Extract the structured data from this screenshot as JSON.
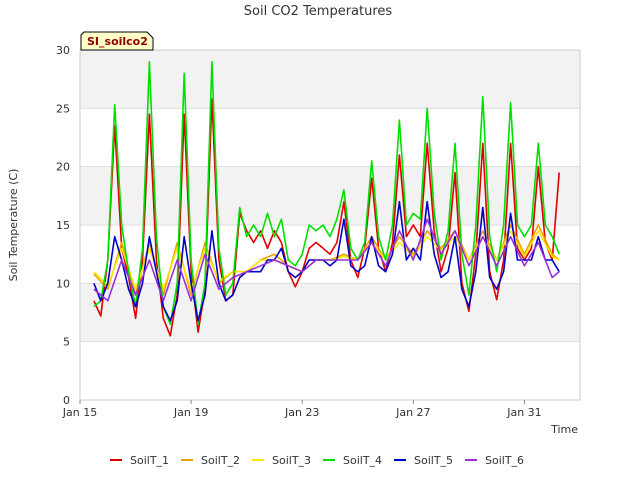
{
  "chart_data": {
    "type": "line",
    "title": "Soil CO2 Temperatures",
    "xlabel": "Time",
    "ylabel": "Soil Temperature (C)",
    "site_label": "SI_soilco2",
    "xlim": [
      "2023-01-15",
      "2023-02-02"
    ],
    "ylim": [
      0,
      30
    ],
    "yticks": [
      0,
      5,
      10,
      15,
      20,
      25,
      30
    ],
    "xticks": [
      {
        "date": "2023-01-15",
        "label": "Jan 15"
      },
      {
        "date": "2023-01-19",
        "label": "Jan 19"
      },
      {
        "date": "2023-01-23",
        "label": "Jan 23"
      },
      {
        "date": "2023-01-27",
        "label": "Jan 27"
      },
      {
        "date": "2023-01-31",
        "label": "Jan 31"
      }
    ],
    "grid": true,
    "legend_position": "bottom",
    "series": [
      {
        "name": "SoilT_1",
        "color": "#e00000",
        "x": [
          "2023-01-15T12:00",
          "2023-01-15T18:00",
          "2023-01-16T00:00",
          "2023-01-16T06:00",
          "2023-01-16T12:00",
          "2023-01-16T18:00",
          "2023-01-17T00:00",
          "2023-01-17T06:00",
          "2023-01-17T12:00",
          "2023-01-17T18:00",
          "2023-01-18T00:00",
          "2023-01-18T06:00",
          "2023-01-18T12:00",
          "2023-01-18T18:00",
          "2023-01-19T00:00",
          "2023-01-19T06:00",
          "2023-01-19T12:00",
          "2023-01-19T18:00",
          "2023-01-20T00:00",
          "2023-01-20T06:00",
          "2023-01-20T12:00",
          "2023-01-20T18:00",
          "2023-01-21T00:00",
          "2023-01-21T06:00",
          "2023-01-21T12:00",
          "2023-01-21T18:00",
          "2023-01-22T00:00",
          "2023-01-22T06:00",
          "2023-01-22T12:00",
          "2023-01-22T18:00",
          "2023-01-23T00:00",
          "2023-01-23T06:00",
          "2023-01-23T12:00",
          "2023-01-23T18:00",
          "2023-01-24T00:00",
          "2023-01-24T06:00",
          "2023-01-24T12:00",
          "2023-01-24T18:00",
          "2023-01-25T00:00",
          "2023-01-25T06:00",
          "2023-01-25T12:00",
          "2023-01-25T18:00",
          "2023-01-26T00:00",
          "2023-01-26T06:00",
          "2023-01-26T12:00",
          "2023-01-26T18:00",
          "2023-01-27T00:00",
          "2023-01-27T06:00",
          "2023-01-27T12:00",
          "2023-01-27T18:00",
          "2023-01-28T00:00",
          "2023-01-28T06:00",
          "2023-01-28T12:00",
          "2023-01-28T18:00",
          "2023-01-29T00:00",
          "2023-01-29T06:00",
          "2023-01-29T12:00",
          "2023-01-29T18:00",
          "2023-01-30T00:00",
          "2023-01-30T06:00",
          "2023-01-30T12:00",
          "2023-01-30T18:00",
          "2023-01-31T00:00",
          "2023-01-31T06:00",
          "2023-01-31T12:00",
          "2023-01-31T18:00",
          "2023-02-01T00:00",
          "2023-02-01T06:00"
        ],
        "y": [
          8.5,
          7.2,
          12,
          23.5,
          13,
          10.5,
          7,
          12,
          24.5,
          12,
          7,
          5.5,
          9,
          24.5,
          11,
          5.8,
          9.5,
          25.8,
          12,
          8.5,
          9,
          16,
          14.5,
          13.5,
          14.5,
          13,
          14.5,
          13.5,
          11,
          9.7,
          11,
          13,
          13.5,
          13,
          12.5,
          13.5,
          17,
          12,
          10.5,
          13,
          19,
          13,
          11,
          13.5,
          21,
          14,
          15,
          14,
          22,
          14.5,
          11,
          13,
          19.5,
          10,
          7.6,
          12.5,
          22,
          11,
          8.6,
          12,
          22,
          13,
          12,
          13,
          20,
          13.5,
          12,
          19.5
        ]
      },
      {
        "name": "SoilT_2",
        "color": "#f0a000",
        "x": [
          "2023-01-15T12:00",
          "2023-01-16T00:00",
          "2023-01-16T12:00",
          "2023-01-17T00:00",
          "2023-01-17T12:00",
          "2023-01-18T00:00",
          "2023-01-18T12:00",
          "2023-01-19T00:00",
          "2023-01-19T12:00",
          "2023-01-20T00:00",
          "2023-01-20T12:00",
          "2023-01-21T00:00",
          "2023-01-21T12:00",
          "2023-01-22T00:00",
          "2023-01-22T12:00",
          "2023-01-23T00:00",
          "2023-01-23T12:00",
          "2023-01-24T00:00",
          "2023-01-24T12:00",
          "2023-01-25T00:00",
          "2023-01-25T12:00",
          "2023-01-26T00:00",
          "2023-01-26T12:00",
          "2023-01-27T00:00",
          "2023-01-27T12:00",
          "2023-01-28T00:00",
          "2023-01-28T12:00",
          "2023-01-29T00:00",
          "2023-01-29T12:00",
          "2023-01-30T00:00",
          "2023-01-30T12:00",
          "2023-01-31T00:00",
          "2023-01-31T12:00",
          "2023-02-01T00:00",
          "2023-02-01T06:00"
        ],
        "y": [
          10.8,
          9.5,
          13.5,
          9,
          13.5,
          9,
          13.5,
          9,
          13.5,
          10,
          11,
          11,
          12,
          12.5,
          11.5,
          11,
          12,
          12,
          12.5,
          12,
          14,
          12,
          14,
          12.5,
          14.5,
          13,
          14.5,
          12,
          14.5,
          12,
          15,
          12.5,
          15,
          12.5,
          12
        ]
      },
      {
        "name": "SoilT_3",
        "color": "#f8e800",
        "x": [
          "2023-01-15T12:00",
          "2023-01-16T00:00",
          "2023-01-16T12:00",
          "2023-01-17T00:00",
          "2023-01-17T12:00",
          "2023-01-18T00:00",
          "2023-01-18T12:00",
          "2023-01-19T00:00",
          "2023-01-19T12:00",
          "2023-01-20T00:00",
          "2023-01-20T12:00",
          "2023-01-21T00:00",
          "2023-01-21T12:00",
          "2023-01-22T00:00",
          "2023-01-22T12:00",
          "2023-01-23T00:00",
          "2023-01-23T12:00",
          "2023-01-24T00:00",
          "2023-01-24T12:00",
          "2023-01-25T00:00",
          "2023-01-25T12:00",
          "2023-01-26T00:00",
          "2023-01-26T12:00",
          "2023-01-27T00:00",
          "2023-01-27T12:00",
          "2023-01-28T00:00",
          "2023-01-28T12:00",
          "2023-01-29T00:00",
          "2023-01-29T12:00",
          "2023-01-30T00:00",
          "2023-01-30T12:00",
          "2023-01-31T00:00",
          "2023-01-31T12:00",
          "2023-02-01T00:00",
          "2023-02-01T06:00"
        ],
        "y": [
          11,
          9.8,
          13,
          9.5,
          13,
          9.5,
          13,
          9.5,
          13,
          10.2,
          11,
          11,
          12,
          12,
          11.5,
          11,
          12,
          12,
          12.3,
          12,
          13.5,
          12,
          13.5,
          12.3,
          14,
          12.8,
          14,
          12,
          14,
          12,
          14.5,
          12.3,
          14.5,
          12.3,
          12
        ]
      },
      {
        "name": "SoilT_4",
        "color": "#00e000",
        "x": [
          "2023-01-15T12:00",
          "2023-01-15T18:00",
          "2023-01-16T00:00",
          "2023-01-16T06:00",
          "2023-01-16T12:00",
          "2023-01-16T18:00",
          "2023-01-17T00:00",
          "2023-01-17T06:00",
          "2023-01-17T12:00",
          "2023-01-17T18:00",
          "2023-01-18T00:00",
          "2023-01-18T06:00",
          "2023-01-18T12:00",
          "2023-01-18T18:00",
          "2023-01-19T00:00",
          "2023-01-19T06:00",
          "2023-01-19T12:00",
          "2023-01-19T18:00",
          "2023-01-20T00:00",
          "2023-01-20T06:00",
          "2023-01-20T12:00",
          "2023-01-20T18:00",
          "2023-01-21T00:00",
          "2023-01-21T06:00",
          "2023-01-21T12:00",
          "2023-01-21T18:00",
          "2023-01-22T00:00",
          "2023-01-22T06:00",
          "2023-01-22T12:00",
          "2023-01-22T18:00",
          "2023-01-23T00:00",
          "2023-01-23T06:00",
          "2023-01-23T12:00",
          "2023-01-23T18:00",
          "2023-01-24T00:00",
          "2023-01-24T06:00",
          "2023-01-24T12:00",
          "2023-01-24T18:00",
          "2023-01-25T00:00",
          "2023-01-25T06:00",
          "2023-01-25T12:00",
          "2023-01-25T18:00",
          "2023-01-26T00:00",
          "2023-01-26T06:00",
          "2023-01-26T12:00",
          "2023-01-26T18:00",
          "2023-01-27T00:00",
          "2023-01-27T06:00",
          "2023-01-27T12:00",
          "2023-01-27T18:00",
          "2023-01-28T00:00",
          "2023-01-28T06:00",
          "2023-01-28T12:00",
          "2023-01-28T18:00",
          "2023-01-29T00:00",
          "2023-01-29T06:00",
          "2023-01-29T12:00",
          "2023-01-29T18:00",
          "2023-01-30T00:00",
          "2023-01-30T06:00",
          "2023-01-30T12:00",
          "2023-01-30T18:00",
          "2023-01-31T00:00",
          "2023-01-31T06:00",
          "2023-01-31T12:00",
          "2023-01-31T18:00",
          "2023-02-01T00:00",
          "2023-02-01T06:00"
        ],
        "y": [
          8,
          8.5,
          12,
          25.3,
          15,
          11,
          8,
          13,
          29,
          14,
          8,
          6.5,
          10,
          28,
          12,
          6.5,
          10,
          29,
          13,
          9,
          10,
          16.5,
          14,
          15,
          14,
          16,
          14,
          15.5,
          12,
          11.5,
          12.5,
          15,
          14.5,
          15,
          14,
          15.5,
          18,
          13,
          12,
          13.5,
          20.5,
          14,
          12,
          15,
          24,
          15,
          16,
          15.5,
          25,
          16,
          12,
          14.5,
          22,
          12.5,
          9,
          15,
          26,
          14,
          11,
          15,
          25.5,
          15,
          14,
          15,
          22,
          15,
          14,
          12.5
        ]
      },
      {
        "name": "SoilT_5",
        "color": "#0000c8",
        "x": [
          "2023-01-15T12:00",
          "2023-01-15T18:00",
          "2023-01-16T00:00",
          "2023-01-16T06:00",
          "2023-01-16T12:00",
          "2023-01-16T18:00",
          "2023-01-17T00:00",
          "2023-01-17T06:00",
          "2023-01-17T12:00",
          "2023-01-17T18:00",
          "2023-01-18T00:00",
          "2023-01-18T06:00",
          "2023-01-18T12:00",
          "2023-01-18T18:00",
          "2023-01-19T00:00",
          "2023-01-19T06:00",
          "2023-01-19T12:00",
          "2023-01-19T18:00",
          "2023-01-20T00:00",
          "2023-01-20T06:00",
          "2023-01-20T12:00",
          "2023-01-20T18:00",
          "2023-01-21T00:00",
          "2023-01-21T06:00",
          "2023-01-21T12:00",
          "2023-01-21T18:00",
          "2023-01-22T00:00",
          "2023-01-22T06:00",
          "2023-01-22T12:00",
          "2023-01-22T18:00",
          "2023-01-23T00:00",
          "2023-01-23T06:00",
          "2023-01-23T12:00",
          "2023-01-23T18:00",
          "2023-01-24T00:00",
          "2023-01-24T06:00",
          "2023-01-24T12:00",
          "2023-01-24T18:00",
          "2023-01-25T00:00",
          "2023-01-25T06:00",
          "2023-01-25T12:00",
          "2023-01-25T18:00",
          "2023-01-26T00:00",
          "2023-01-26T06:00",
          "2023-01-26T12:00",
          "2023-01-26T18:00",
          "2023-01-27T00:00",
          "2023-01-27T06:00",
          "2023-01-27T12:00",
          "2023-01-27T18:00",
          "2023-01-28T00:00",
          "2023-01-28T06:00",
          "2023-01-28T12:00",
          "2023-01-28T18:00",
          "2023-01-29T00:00",
          "2023-01-29T06:00",
          "2023-01-29T12:00",
          "2023-01-29T18:00",
          "2023-01-30T00:00",
          "2023-01-30T06:00",
          "2023-01-30T12:00",
          "2023-01-30T18:00",
          "2023-01-31T00:00",
          "2023-01-31T06:00",
          "2023-01-31T12:00",
          "2023-01-31T18:00",
          "2023-02-01T00:00",
          "2023-02-01T06:00"
        ],
        "y": [
          10,
          8.5,
          10,
          14,
          12,
          9.5,
          8,
          10,
          14,
          11,
          8,
          6.8,
          8.5,
          14,
          10,
          6.8,
          9,
          14.5,
          10,
          8.5,
          9,
          10.5,
          11,
          11,
          11,
          12,
          12,
          13,
          11,
          10.5,
          11,
          12,
          12,
          12,
          11.5,
          12,
          15.5,
          11.5,
          11,
          11.5,
          14,
          11.5,
          11,
          12.5,
          17,
          12,
          13,
          12,
          17,
          12.5,
          10.5,
          11,
          14,
          9.5,
          8,
          11,
          16.5,
          10.5,
          9.5,
          11,
          16,
          12,
          12,
          12,
          14,
          12,
          12,
          11
        ]
      },
      {
        "name": "SoilT_6",
        "color": "#9b30d9",
        "x": [
          "2023-01-15T12:00",
          "2023-01-16T00:00",
          "2023-01-16T12:00",
          "2023-01-17T00:00",
          "2023-01-17T12:00",
          "2023-01-18T00:00",
          "2023-01-18T12:00",
          "2023-01-19T00:00",
          "2023-01-19T12:00",
          "2023-01-20T00:00",
          "2023-01-20T12:00",
          "2023-01-21T00:00",
          "2023-01-21T12:00",
          "2023-01-22T00:00",
          "2023-01-22T12:00",
          "2023-01-23T00:00",
          "2023-01-23T12:00",
          "2023-01-24T00:00",
          "2023-01-24T12:00",
          "2023-01-25T00:00",
          "2023-01-25T12:00",
          "2023-01-26T00:00",
          "2023-01-26T12:00",
          "2023-01-27T00:00",
          "2023-01-27T12:00",
          "2023-01-28T00:00",
          "2023-01-28T12:00",
          "2023-01-29T00:00",
          "2023-01-29T12:00",
          "2023-01-30T00:00",
          "2023-01-30T12:00",
          "2023-01-31T00:00",
          "2023-01-31T12:00",
          "2023-02-01T00:00",
          "2023-02-01T06:00"
        ],
        "y": [
          9.5,
          8.5,
          12,
          9,
          12,
          8.5,
          12,
          8.5,
          12.5,
          9.5,
          10.5,
          11,
          11.5,
          12,
          11.5,
          11,
          12,
          12,
          12,
          12,
          13.5,
          11.5,
          14.5,
          12,
          15.5,
          12.5,
          14.5,
          11.5,
          14,
          11.5,
          14,
          11.5,
          13.5,
          10.5,
          11
        ]
      }
    ]
  }
}
